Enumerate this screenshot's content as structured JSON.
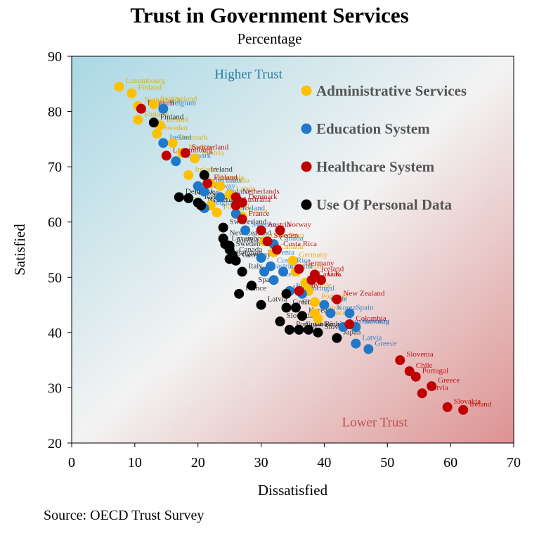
{
  "chart_data": {
    "type": "scatter",
    "title": "Trust in Government Services",
    "subtitle": "Percentage",
    "xlabel": "Dissatisfied",
    "ylabel": "Satisfied",
    "xlim": [
      0,
      70
    ],
    "ylim": [
      20,
      90
    ],
    "x_ticks": [
      0,
      10,
      20,
      30,
      40,
      50,
      60,
      70
    ],
    "y_ticks": [
      20,
      30,
      40,
      50,
      60,
      70,
      80,
      90
    ],
    "grid": false,
    "legend_position": "top-right",
    "source": "Source: OECD Trust Survey",
    "annotations": [
      {
        "text": "Higher Trust",
        "x": 28,
        "y": 86,
        "color": "#2a7e9e"
      },
      {
        "text": "Lower Trust",
        "x": 48,
        "y": 23,
        "color": "#c0504d"
      }
    ],
    "series": [
      {
        "name": "Administrative Services",
        "color": "#ffc000",
        "points": [
          {
            "label": "Luxembourg",
            "x": 7.5,
            "y": 84.5
          },
          {
            "label": "Finland",
            "x": 9.5,
            "y": 83.3
          },
          {
            "label": "Switzerland",
            "x": 13,
            "y": 81.3
          },
          {
            "label": "Netherlands",
            "x": 10.5,
            "y": 81
          },
          {
            "label": "Finland",
            "x": 10.5,
            "y": 78.5
          },
          {
            "label": "Ireland",
            "x": 14,
            "y": 77.5
          },
          {
            "label": "Sweden",
            "x": 13.5,
            "y": 76
          },
          {
            "label": "Denmark",
            "x": 16,
            "y": 74.3
          },
          {
            "label": "Norway",
            "x": 17.5,
            "y": 72.5
          },
          {
            "label": "Austria",
            "x": 19.5,
            "y": 71.5
          },
          {
            "label": "Ireland",
            "x": 18.5,
            "y": 68.5
          },
          {
            "label": "Slovenia",
            "x": 22,
            "y": 67
          },
          {
            "label": "Estonia",
            "x": 23.5,
            "y": 66.5
          },
          {
            "label": "Latvia",
            "x": 25,
            "y": 65
          },
          {
            "label": "Iceland",
            "x": 22,
            "y": 63
          },
          {
            "label": "Portugal",
            "x": 23,
            "y": 61.7
          },
          {
            "label": "Korea",
            "x": 27,
            "y": 61
          },
          {
            "label": "Costa Rica",
            "x": 30.5,
            "y": 56.5
          },
          {
            "label": "Canada",
            "x": 32,
            "y": 54.5
          },
          {
            "label": "Germany",
            "x": 35,
            "y": 53
          },
          {
            "label": "Czech",
            "x": 35.5,
            "y": 51
          },
          {
            "label": "Italy",
            "x": 37,
            "y": 49
          },
          {
            "label": "Chile",
            "x": 37.5,
            "y": 47.5
          },
          {
            "label": "Portugal",
            "x": 38.5,
            "y": 45.5
          },
          {
            "label": "France",
            "x": 38.5,
            "y": 43.5
          },
          {
            "label": "Greece",
            "x": 39,
            "y": 42.5
          }
        ]
      },
      {
        "name": "Education System",
        "color": "#1f78c8",
        "points": [
          {
            "label": "Belgium",
            "x": 14.5,
            "y": 80.5
          },
          {
            "label": "Ireland",
            "x": 14.5,
            "y": 74.3
          },
          {
            "label": "Denmark",
            "x": 16.5,
            "y": 71
          },
          {
            "label": "Netherlands",
            "x": 20,
            "y": 66.5
          },
          {
            "label": "Norway",
            "x": 21,
            "y": 65.5
          },
          {
            "label": "Finland",
            "x": 23.5,
            "y": 64.5
          },
          {
            "label": "Belgium",
            "x": 21,
            "y": 62.5
          },
          {
            "label": "Iceland",
            "x": 26,
            "y": 61.5
          },
          {
            "label": "Sweden",
            "x": 27.5,
            "y": 58.5
          },
          {
            "label": "Canada",
            "x": 32,
            "y": 56
          },
          {
            "label": "Slovenia",
            "x": 30,
            "y": 53.5
          },
          {
            "label": "Costa Rica",
            "x": 31.5,
            "y": 52
          },
          {
            "label": "Estonia",
            "x": 33.5,
            "y": 51
          },
          {
            "label": "Austria",
            "x": 30.5,
            "y": 51
          },
          {
            "label": "Czech",
            "x": 32,
            "y": 49.5
          },
          {
            "label": "Italy",
            "x": 34.5,
            "y": 47.5
          },
          {
            "label": "Portugal",
            "x": 36.5,
            "y": 47
          },
          {
            "label": "Chile",
            "x": 40,
            "y": 45
          },
          {
            "label": "Korea",
            "x": 41,
            "y": 43.5
          },
          {
            "label": "Spain",
            "x": 44,
            "y": 43.5
          },
          {
            "label": "Luxembourg",
            "x": 43,
            "y": 41
          },
          {
            "label": "Slovakia",
            "x": 45,
            "y": 41
          },
          {
            "label": "Latvia",
            "x": 45,
            "y": 38
          },
          {
            "label": "Greece",
            "x": 47,
            "y": 37
          }
        ]
      },
      {
        "name": "Healthcare System",
        "color": "#c00000",
        "points": [
          {
            "label": "Belgium",
            "x": 11,
            "y": 80.5
          },
          {
            "label": "Switzerland",
            "x": 18,
            "y": 72.5
          },
          {
            "label": "Luxembourg",
            "x": 15,
            "y": 72
          },
          {
            "label": "Finland",
            "x": 21.5,
            "y": 67
          },
          {
            "label": "Netherlands",
            "x": 26,
            "y": 64.5
          },
          {
            "label": "Denmark",
            "x": 27,
            "y": 63.5
          },
          {
            "label": "Australia",
            "x": 26,
            "y": 63
          },
          {
            "label": "France",
            "x": 27,
            "y": 60.5
          },
          {
            "label": "Norway",
            "x": 33,
            "y": 58.5
          },
          {
            "label": "Austria",
            "x": 30,
            "y": 58.5
          },
          {
            "label": "Sweden",
            "x": 31,
            "y": 56.5
          },
          {
            "label": "Costa Rica",
            "x": 32.5,
            "y": 55
          },
          {
            "label": "Germany",
            "x": 36,
            "y": 51.5
          },
          {
            "label": "Iceland",
            "x": 38.5,
            "y": 50.5
          },
          {
            "label": "U.K.",
            "x": 39.5,
            "y": 49.5
          },
          {
            "label": "Canada",
            "x": 38,
            "y": 49.5
          },
          {
            "label": "Italy",
            "x": 36,
            "y": 47.5
          },
          {
            "label": "New Zealand",
            "x": 42,
            "y": 46
          },
          {
            "label": "Colombia",
            "x": 44,
            "y": 41.5
          },
          {
            "label": "Slovenia",
            "x": 52,
            "y": 35
          },
          {
            "label": "Chile",
            "x": 53.5,
            "y": 33
          },
          {
            "label": "Portugal",
            "x": 54.5,
            "y": 32
          },
          {
            "label": "Greece",
            "x": 57,
            "y": 30.3
          },
          {
            "label": "Latvia",
            "x": 55.5,
            "y": 29
          },
          {
            "label": "Slovakia",
            "x": 59.5,
            "y": 26.5
          },
          {
            "label": "Ireland",
            "x": 62,
            "y": 26
          }
        ]
      },
      {
        "name": "Use Of Personal Data",
        "color": "#000000",
        "points": [
          {
            "label": "Finland",
            "x": 13,
            "y": 78
          },
          {
            "label": "Ireland",
            "x": 21,
            "y": 68.5
          },
          {
            "label": "Denmark",
            "x": 17,
            "y": 64.5
          },
          {
            "label": "Norway",
            "x": 18.5,
            "y": 64.3
          },
          {
            "label": "Netherlands",
            "x": 20.5,
            "y": 63
          },
          {
            "label": "Iceland",
            "x": 20,
            "y": 63.5
          },
          {
            "label": "Switzerland",
            "x": 24,
            "y": 59
          },
          {
            "label": "New Zealand",
            "x": 24,
            "y": 57
          },
          {
            "label": "Luxembourg",
            "x": 24.3,
            "y": 56
          },
          {
            "label": "Austria",
            "x": 25,
            "y": 55.7
          },
          {
            "label": "Sweden",
            "x": 25,
            "y": 55
          },
          {
            "label": "Canada",
            "x": 25.5,
            "y": 54
          },
          {
            "label": "Belgium",
            "x": 25,
            "y": 53.3
          },
          {
            "label": "Germany",
            "x": 26,
            "y": 53
          },
          {
            "label": "Italy",
            "x": 27,
            "y": 51
          },
          {
            "label": "Spain",
            "x": 28.5,
            "y": 48.5
          },
          {
            "label": "France",
            "x": 26.5,
            "y": 47
          },
          {
            "label": "Latvia",
            "x": 30,
            "y": 45
          },
          {
            "label": "U.K.",
            "x": 34,
            "y": 47
          },
          {
            "label": "Greece",
            "x": 34,
            "y": 44.5
          },
          {
            "label": "Chile",
            "x": 35.5,
            "y": 44.5
          },
          {
            "label": "Korea",
            "x": 36.5,
            "y": 43
          },
          {
            "label": "Slovakia",
            "x": 33,
            "y": 42
          },
          {
            "label": "Portugal",
            "x": 34.5,
            "y": 40.5
          },
          {
            "label": "Costa Rica",
            "x": 36,
            "y": 40.5
          },
          {
            "label": "Colombia",
            "x": 37.5,
            "y": 40.5
          },
          {
            "label": "Slovenia",
            "x": 39,
            "y": 40
          },
          {
            "label": "Japan",
            "x": 42,
            "y": 39
          }
        ]
      }
    ]
  }
}
